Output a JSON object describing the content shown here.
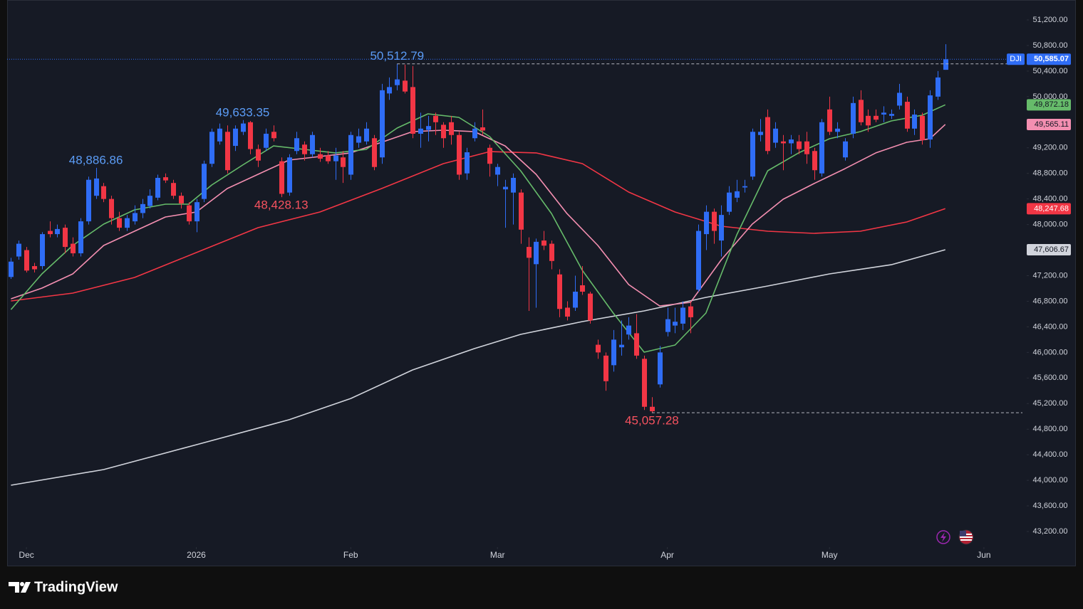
{
  "chart_data": {
    "type": "candlestick",
    "symbol": "DJI",
    "up_color": "#2f6df6",
    "down_color": "#f23645",
    "open": [
      47180,
      47500,
      47600,
      47350,
      47350,
      47900,
      47850,
      47950,
      47700,
      47550,
      48050,
      48450,
      48600,
      48400,
      48100,
      47950,
      48050,
      48180,
      48290,
      48420,
      48740,
      48650,
      48450,
      48300,
      48050,
      48400,
      48950,
      49300,
      49450,
      49230,
      49450,
      49600,
      49180,
      49200,
      49450,
      48990,
      48500,
      49150,
      49250,
      49100,
      49100,
      49080,
      48990,
      49050,
      48780,
      49280,
      49300,
      49350,
      49050,
      50050,
      50180,
      50250,
      50150,
      49420,
      49480,
      49700,
      49560,
      49600,
      49400,
      48800,
      49350,
      49520,
      49200,
      48780,
      48550,
      48500,
      48500,
      47650,
      47380,
      47750,
      47700,
      47220,
      46700,
      46700,
      47050,
      46920,
      46120,
      45950,
      45800,
      46080,
      46280,
      46300,
      45900,
      45150,
      45500,
      46320,
      46420,
      46450,
      46720,
      46980,
      47850,
      48200,
      47750,
      48200,
      48420,
      48580,
      48750,
      49400,
      49680,
      49280,
      49300,
      49270,
      49300,
      49300,
      49150,
      48800,
      49800,
      49450,
      49050,
      49420,
      49950,
      49700,
      49700,
      49720,
      49700,
      49860,
      49920,
      49500,
      49700,
      49330,
      50000,
      50420
    ],
    "high": [
      47480,
      47750,
      47650,
      47400,
      47880,
      48050,
      48000,
      48000,
      47800,
      48100,
      48750,
      48886.86,
      48650,
      48450,
      48200,
      48150,
      48300,
      48400,
      48550,
      48780,
      48800,
      48700,
      48500,
      48350,
      48400,
      49000,
      49500,
      49580,
      49550,
      49550,
      49633.35,
      49620,
      49250,
      49500,
      49550,
      49050,
      49100,
      49450,
      49300,
      49450,
      49200,
      49150,
      49200,
      49150,
      49450,
      49500,
      49600,
      49400,
      50200,
      50300,
      50512.79,
      50500,
      50480,
      49750,
      49700,
      49750,
      49600,
      49700,
      49450,
      49200,
      49600,
      49800,
      49250,
      48950,
      48700,
      48800,
      48550,
      47800,
      47780,
      47900,
      47750,
      47300,
      46800,
      47200,
      47350,
      46950,
      46200,
      46000,
      46350,
      46500,
      46550,
      46600,
      45950,
      45300,
      46100,
      46700,
      46700,
      46800,
      46800,
      48000,
      48300,
      48250,
      48300,
      48600,
      48700,
      48700,
      49500,
      49650,
      49800,
      49600,
      49400,
      49400,
      49400,
      49450,
      49200,
      49650,
      50000,
      49600,
      49350,
      50000,
      50100,
      49800,
      49800,
      49850,
      49800,
      50200,
      50000,
      49800,
      49750,
      50100,
      50400,
      50820
    ],
    "low": [
      47150,
      47450,
      47250,
      47250,
      47300,
      47800,
      47800,
      47550,
      47500,
      47500,
      48000,
      48400,
      48350,
      48000,
      47900,
      47900,
      48000,
      48100,
      48250,
      48380,
      48650,
      48400,
      48250,
      48000,
      47880,
      48350,
      48900,
      49250,
      48800,
      49150,
      49400,
      49100,
      48900,
      49150,
      49300,
      48428.13,
      48450,
      49100,
      49000,
      49050,
      48980,
      48950,
      48700,
      48650,
      48700,
      49200,
      49250,
      48850,
      48950,
      49950,
      50100,
      50050,
      49350,
      49200,
      49300,
      49400,
      49200,
      49250,
      48700,
      48700,
      49300,
      49400,
      48750,
      48600,
      47950,
      48000,
      47700,
      46650,
      46700,
      47600,
      47300,
      46550,
      46500,
      46650,
      46900,
      46450,
      45900,
      45400,
      45700,
      45950,
      46200,
      45900,
      45100,
      45057.28,
      45450,
      46250,
      46300,
      46350,
      46300,
      46950,
      47600,
      47700,
      47500,
      48150,
      48350,
      48500,
      48700,
      49300,
      49100,
      49200,
      48850,
      49100,
      49100,
      48950,
      48700,
      48750,
      49400,
      49350,
      49000,
      49350,
      49550,
      49450,
      49600,
      49600,
      49650,
      49800,
      49450,
      49400,
      49250,
      49200,
      49950,
      50420
    ],
    "close": [
      47420,
      47700,
      47280,
      47300,
      47850,
      47850,
      47930,
      47650,
      47550,
      48050,
      48700,
      48720,
      48400,
      48100,
      47950,
      48100,
      48180,
      48320,
      48450,
      48730,
      48690,
      48450,
      48330,
      48050,
      48350,
      48950,
      49450,
      49500,
      48850,
      49500,
      49580,
      49180,
      49000,
      49420,
      49350,
      48480,
      49050,
      49350,
      49100,
      49400,
      49030,
      48990,
      49080,
      48900,
      49400,
      49380,
      49500,
      48900,
      50100,
      50150,
      50270,
      50080,
      49420,
      49500,
      49540,
      49600,
      49350,
      49400,
      48780,
      49130,
      49500,
      49470,
      48950,
      48900,
      48590,
      48730,
      47920,
      47480,
      47730,
      47670,
      47430,
      46680,
      46560,
      46950,
      46950,
      46500,
      46000,
      45550,
      46200,
      46120,
      46420,
      45950,
      45150,
      45080,
      46000,
      46520,
      46480,
      46700,
      46550,
      47900,
      48200,
      47900,
      48150,
      48500,
      48520,
      48600,
      49450,
      49450,
      49150,
      49500,
      49270,
      49330,
      49180,
      49100,
      48850,
      49600,
      49450,
      49500,
      49300,
      49900,
      49600,
      49550,
      49640,
      49750,
      49730,
      50060,
      49500,
      49720,
      49320,
      50020,
      50300,
      50585.07
    ],
    "last_label": "50,585.07",
    "xlim": [
      -0.5,
      131.45
    ],
    "xticks": [
      {
        "value": 2,
        "label": "Dec"
      },
      {
        "value": 24,
        "label": "2026"
      },
      {
        "value": 44,
        "label": "Feb"
      },
      {
        "value": 63,
        "label": "Mar"
      },
      {
        "value": 85,
        "label": "Apr"
      },
      {
        "value": 106,
        "label": "May"
      },
      {
        "value": 126,
        "label": "Jun"
      }
    ],
    "ylim": [
      43000,
      51511.5
    ],
    "yticks": [
      {
        "value": 43200,
        "label": "43,200.00"
      },
      {
        "value": 43600,
        "label": "43,600.00"
      },
      {
        "value": 44000,
        "label": "44,000.00"
      },
      {
        "value": 44400,
        "label": "44,400.00"
      },
      {
        "value": 44800,
        "label": "44,800.00"
      },
      {
        "value": 45200,
        "label": "45,200.00"
      },
      {
        "value": 45600,
        "label": "45,600.00"
      },
      {
        "value": 46000,
        "label": "46,000.00"
      },
      {
        "value": 46400,
        "label": "46,400.00"
      },
      {
        "value": 46800,
        "label": "46,800.00"
      },
      {
        "value": 47200,
        "label": "47,200.00"
      },
      {
        "value": 47600,
        "label": "47,600.00"
      },
      {
        "value": 48000,
        "label": "48,000.00"
      },
      {
        "value": 48400,
        "label": "48,400.00"
      },
      {
        "value": 48800,
        "label": "48,800.00"
      },
      {
        "value": 49200,
        "label": "49,200.00"
      },
      {
        "value": 49600,
        "label": "49,600.00"
      },
      {
        "value": 50000,
        "label": "50,000.00"
      },
      {
        "value": 50400,
        "label": "50,400.00"
      },
      {
        "value": 50800,
        "label": "50,800.00"
      },
      {
        "value": 51200,
        "label": "51,200.00"
      }
    ],
    "series": [
      {
        "color": "#d1d4dc",
        "x": [
          0,
          12,
          24,
          36,
          44,
          52,
          60,
          66,
          74,
          82,
          90,
          98,
          106,
          114,
          121
        ],
        "values": [
          43923,
          44168,
          44557,
          44947,
          45280,
          45726,
          46060,
          46282,
          46482,
          46649,
          46861,
          47039,
          47228,
          47372,
          47606.67
        ],
        "last_label": "47,606.67"
      },
      {
        "color": "#f23645",
        "x": [
          0,
          8,
          16,
          24,
          32,
          40,
          48,
          56,
          62,
          68,
          74,
          80,
          86,
          92,
          98,
          104,
          110,
          116,
          121
        ],
        "values": [
          46805,
          46927,
          47172,
          47562,
          47951,
          48196,
          48563,
          48952,
          49141,
          49120,
          48952,
          48507,
          48196,
          47973,
          47895,
          47862,
          47895,
          48040,
          48247.68
        ],
        "last_label": "48,247.68"
      },
      {
        "color": "#f48fb1",
        "x": [
          0,
          4,
          8,
          12,
          16,
          20,
          24,
          28,
          32,
          36,
          40,
          44,
          48,
          52,
          56,
          60,
          64,
          68,
          72,
          76,
          80,
          84,
          88,
          92,
          96,
          100,
          104,
          108,
          112,
          116,
          119,
          121
        ],
        "values": [
          46838,
          47005,
          47228,
          47673,
          47895,
          48118,
          48196,
          48563,
          48786,
          49008,
          49064,
          49120,
          49286,
          49453,
          49475,
          49453,
          49230,
          48786,
          48173,
          47673,
          47061,
          46727,
          46783,
          47450,
          48007,
          48396,
          48641,
          48874,
          49120,
          49286,
          49342,
          49565.11
        ],
        "last_label": "49,565.11"
      },
      {
        "color": "#66bb6a",
        "x": [
          0,
          4,
          8,
          12,
          16,
          20,
          23,
          26,
          30,
          34,
          38,
          42,
          46,
          50,
          54,
          58,
          62,
          66,
          70,
          74,
          78,
          82,
          86,
          90,
          94,
          98,
          102,
          106,
          110,
          114,
          118,
          121
        ],
        "values": [
          46671,
          47228,
          47673,
          48007,
          48229,
          48318,
          48318,
          48619,
          48930,
          49230,
          49175,
          49120,
          49175,
          49509,
          49731,
          49676,
          49375,
          48841,
          48173,
          47283,
          46616,
          46004,
          46115,
          46616,
          47840,
          48841,
          49120,
          49342,
          49453,
          49620,
          49709,
          49872.18
        ],
        "last_label": "49,872.18"
      }
    ],
    "annotations": [
      {
        "x": 11,
        "value": 48886.86,
        "label": "48,886.86",
        "color": "#5b9cf6",
        "dashed": false
      },
      {
        "x": 30,
        "value": 49633.35,
        "label": "49,633.35",
        "color": "#5b9cf6",
        "dashed": false
      },
      {
        "x": 35,
        "value": 48428.13,
        "label": "48,428.13",
        "color": "#f7525f",
        "dashed": false
      },
      {
        "x": 50,
        "value": 50512.79,
        "label": "50,512.79",
        "color": "#5b9cf6",
        "dashed": true
      },
      {
        "x": 83,
        "value": 45057.28,
        "label": "45,057.28",
        "color": "#f7525f",
        "dashed": true
      }
    ]
  },
  "brand": "TradingView"
}
